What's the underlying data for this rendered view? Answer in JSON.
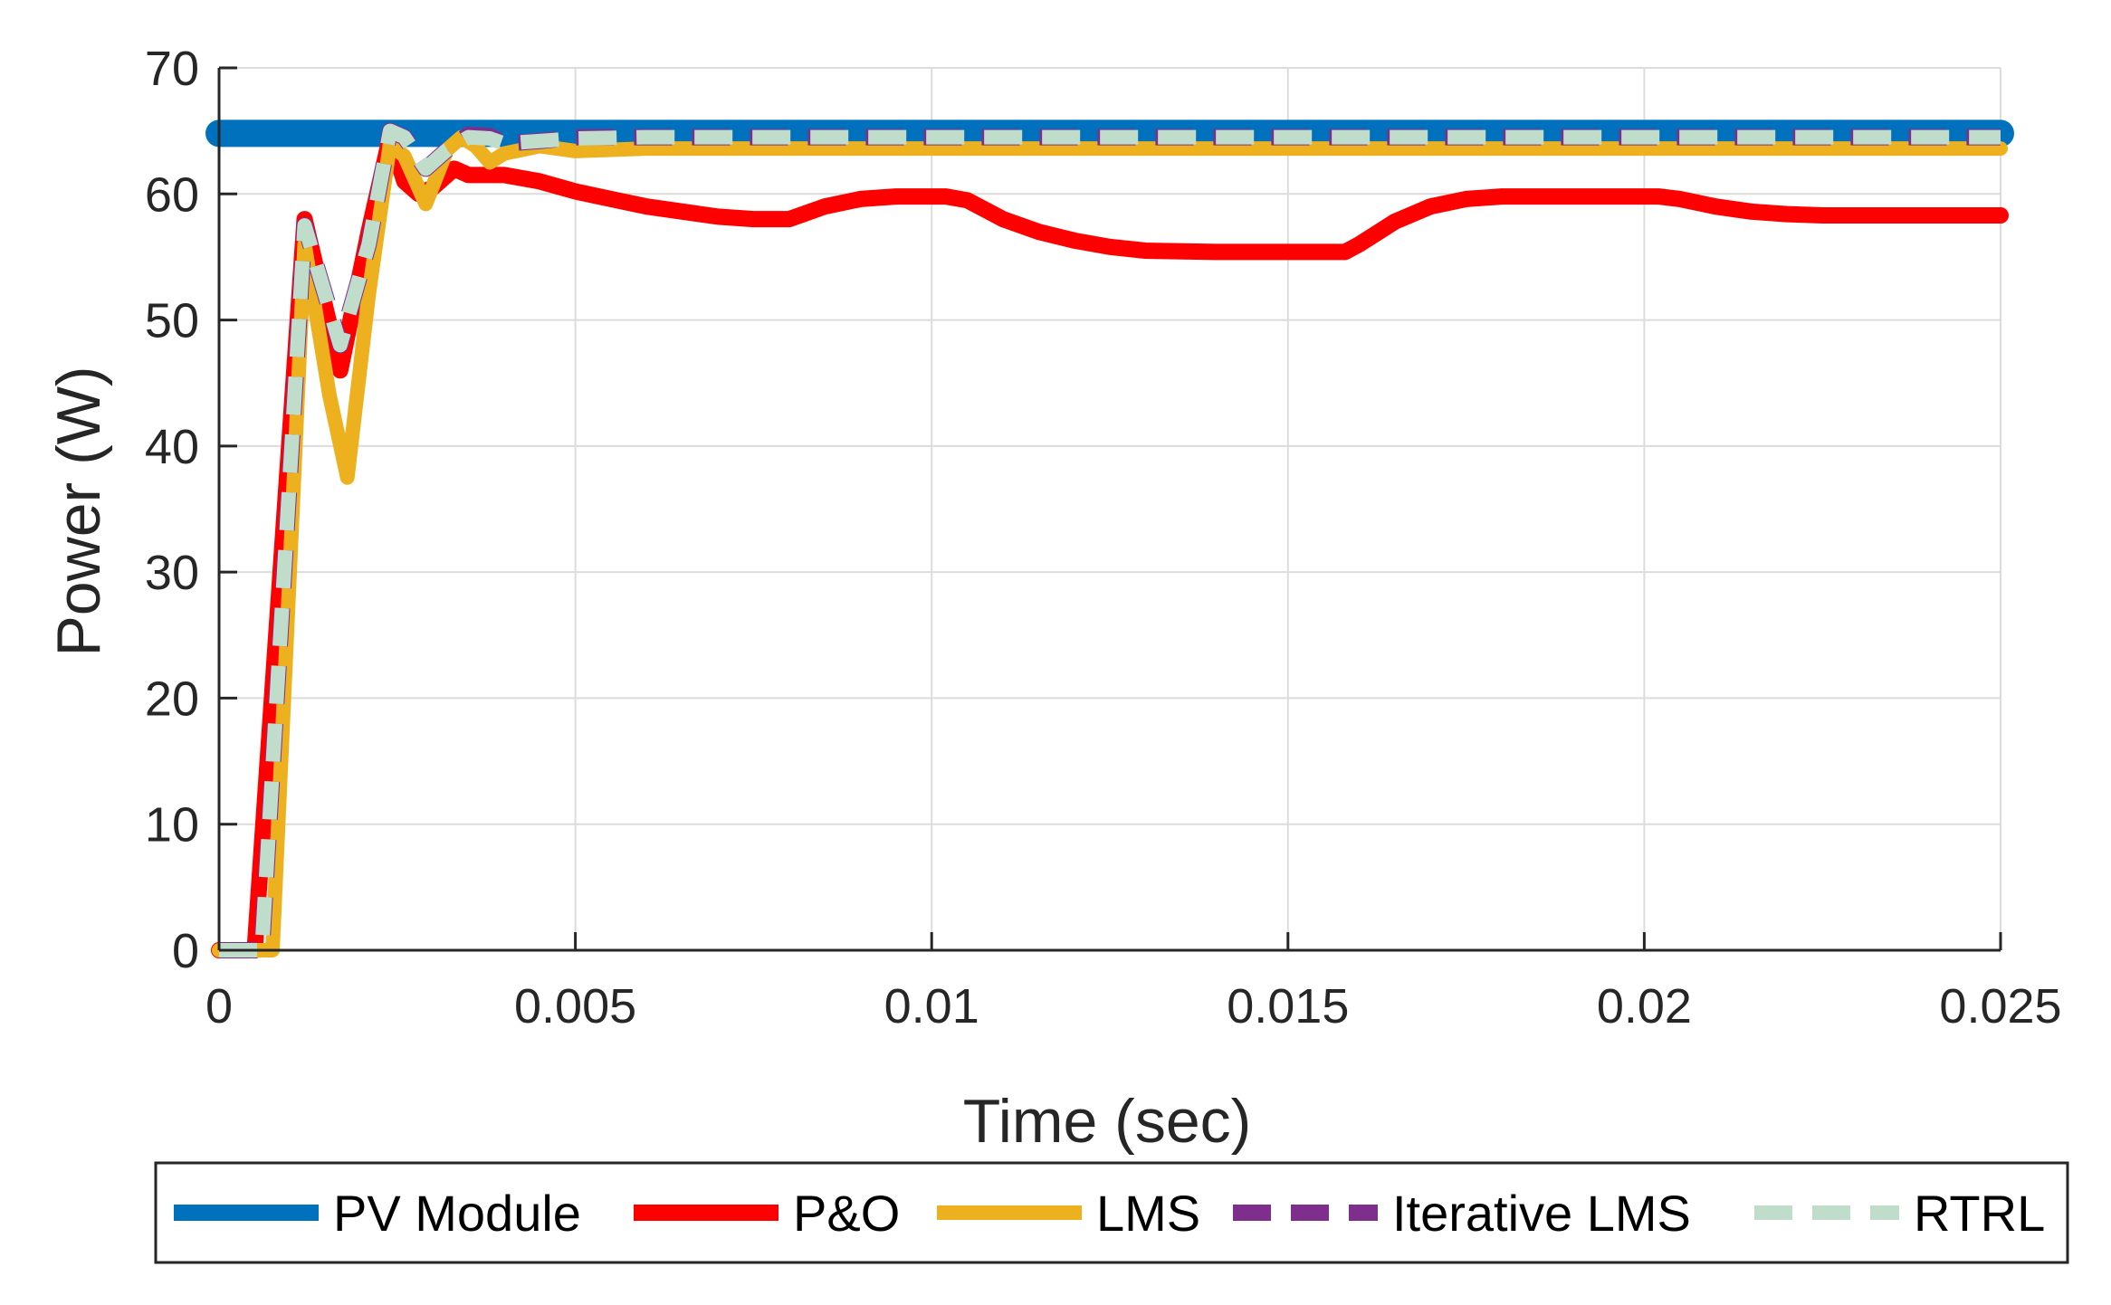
{
  "chart_data": {
    "type": "line",
    "title": "",
    "xlabel": "Time (sec)",
    "ylabel": "Power (W)",
    "xlim": [
      0,
      0.025
    ],
    "ylim": [
      0,
      70
    ],
    "x_ticks": [
      0,
      0.005,
      0.01,
      0.015,
      0.02,
      0.025
    ],
    "x_tick_labels": [
      "0",
      "0.005",
      "0.01",
      "0.015",
      "0.02",
      "0.025"
    ],
    "y_ticks": [
      0,
      10,
      20,
      30,
      40,
      50,
      60,
      70
    ],
    "y_tick_labels": [
      "0",
      "10",
      "20",
      "30",
      "40",
      "50",
      "60",
      "70"
    ],
    "grid": true,
    "legend_position": "bottom-outside",
    "series": [
      {
        "name": "PV Module",
        "color": "#0072BD",
        "style": "solid",
        "x": [
          0,
          0.025
        ],
        "y": [
          64.8,
          64.8
        ]
      },
      {
        "name": "P&O",
        "color": "#FF0000",
        "style": "solid",
        "x": [
          0,
          0.0005,
          0.0012,
          0.0017,
          0.0021,
          0.0024,
          0.0026,
          0.0028,
          0.003,
          0.0033,
          0.0035,
          0.0038,
          0.004,
          0.0045,
          0.005,
          0.0055,
          0.006,
          0.007,
          0.0075,
          0.008,
          0.0085,
          0.009,
          0.0095,
          0.0102,
          0.0105,
          0.011,
          0.0115,
          0.012,
          0.0125,
          0.013,
          0.014,
          0.015,
          0.0158,
          0.016,
          0.0165,
          0.017,
          0.0175,
          0.018,
          0.0185,
          0.019,
          0.0195,
          0.0202,
          0.0205,
          0.021,
          0.0215,
          0.022,
          0.0225,
          0.023,
          0.024,
          0.025
        ],
        "y": [
          0,
          0,
          58,
          46,
          57,
          64.5,
          61,
          60,
          60.5,
          62,
          61.5,
          61.5,
          61.5,
          61,
          60.2,
          59.6,
          59,
          58.2,
          58,
          58,
          59,
          59.6,
          59.8,
          59.8,
          59.5,
          58,
          57,
          56.3,
          55.8,
          55.5,
          55.4,
          55.4,
          55.4,
          56,
          57.8,
          59,
          59.6,
          59.8,
          59.8,
          59.8,
          59.8,
          59.8,
          59.6,
          59,
          58.6,
          58.4,
          58.3,
          58.3,
          58.3,
          58.3
        ]
      },
      {
        "name": "LMS",
        "color": "#EDB120",
        "style": "solid",
        "x": [
          0,
          0.00075,
          0.0012,
          0.00155,
          0.0018,
          0.0021,
          0.0024,
          0.0026,
          0.0029,
          0.0032,
          0.0034,
          0.0036,
          0.0038,
          0.004,
          0.0045,
          0.005,
          0.006,
          0.008,
          0.025
        ],
        "y": [
          0,
          0,
          56,
          44,
          37.5,
          52,
          64,
          63,
          59.2,
          63.5,
          64.5,
          63.8,
          62.5,
          63.2,
          63.8,
          63.4,
          63.6,
          63.6,
          63.6
        ]
      },
      {
        "name": "Iterative LMS",
        "color": "#7E2F8E",
        "style": "dashed",
        "x": [
          0,
          0.0006,
          0.0012,
          0.0017,
          0.0021,
          0.0024,
          0.0026,
          0.0029,
          0.0032,
          0.0035,
          0.0038,
          0.004,
          0.0045,
          0.005,
          0.006,
          0.008,
          0.025
        ],
        "y": [
          0,
          0,
          57.5,
          48,
          56,
          65,
          64.5,
          62,
          63.5,
          64.7,
          64.6,
          64,
          64.2,
          64.5,
          64.5,
          64.5,
          64.5
        ]
      },
      {
        "name": "RTRL",
        "color": "#BFDDCA",
        "style": "dashed",
        "x": [
          0,
          0.0006,
          0.0012,
          0.0017,
          0.0021,
          0.0024,
          0.0026,
          0.0029,
          0.0032,
          0.0035,
          0.0038,
          0.004,
          0.0045,
          0.005,
          0.006,
          0.008,
          0.025
        ],
        "y": [
          0,
          0,
          57.5,
          48,
          56,
          65,
          64.5,
          62,
          63.5,
          64.5,
          64.4,
          64,
          64.2,
          64.4,
          64.5,
          64.5,
          64.5
        ]
      }
    ]
  }
}
